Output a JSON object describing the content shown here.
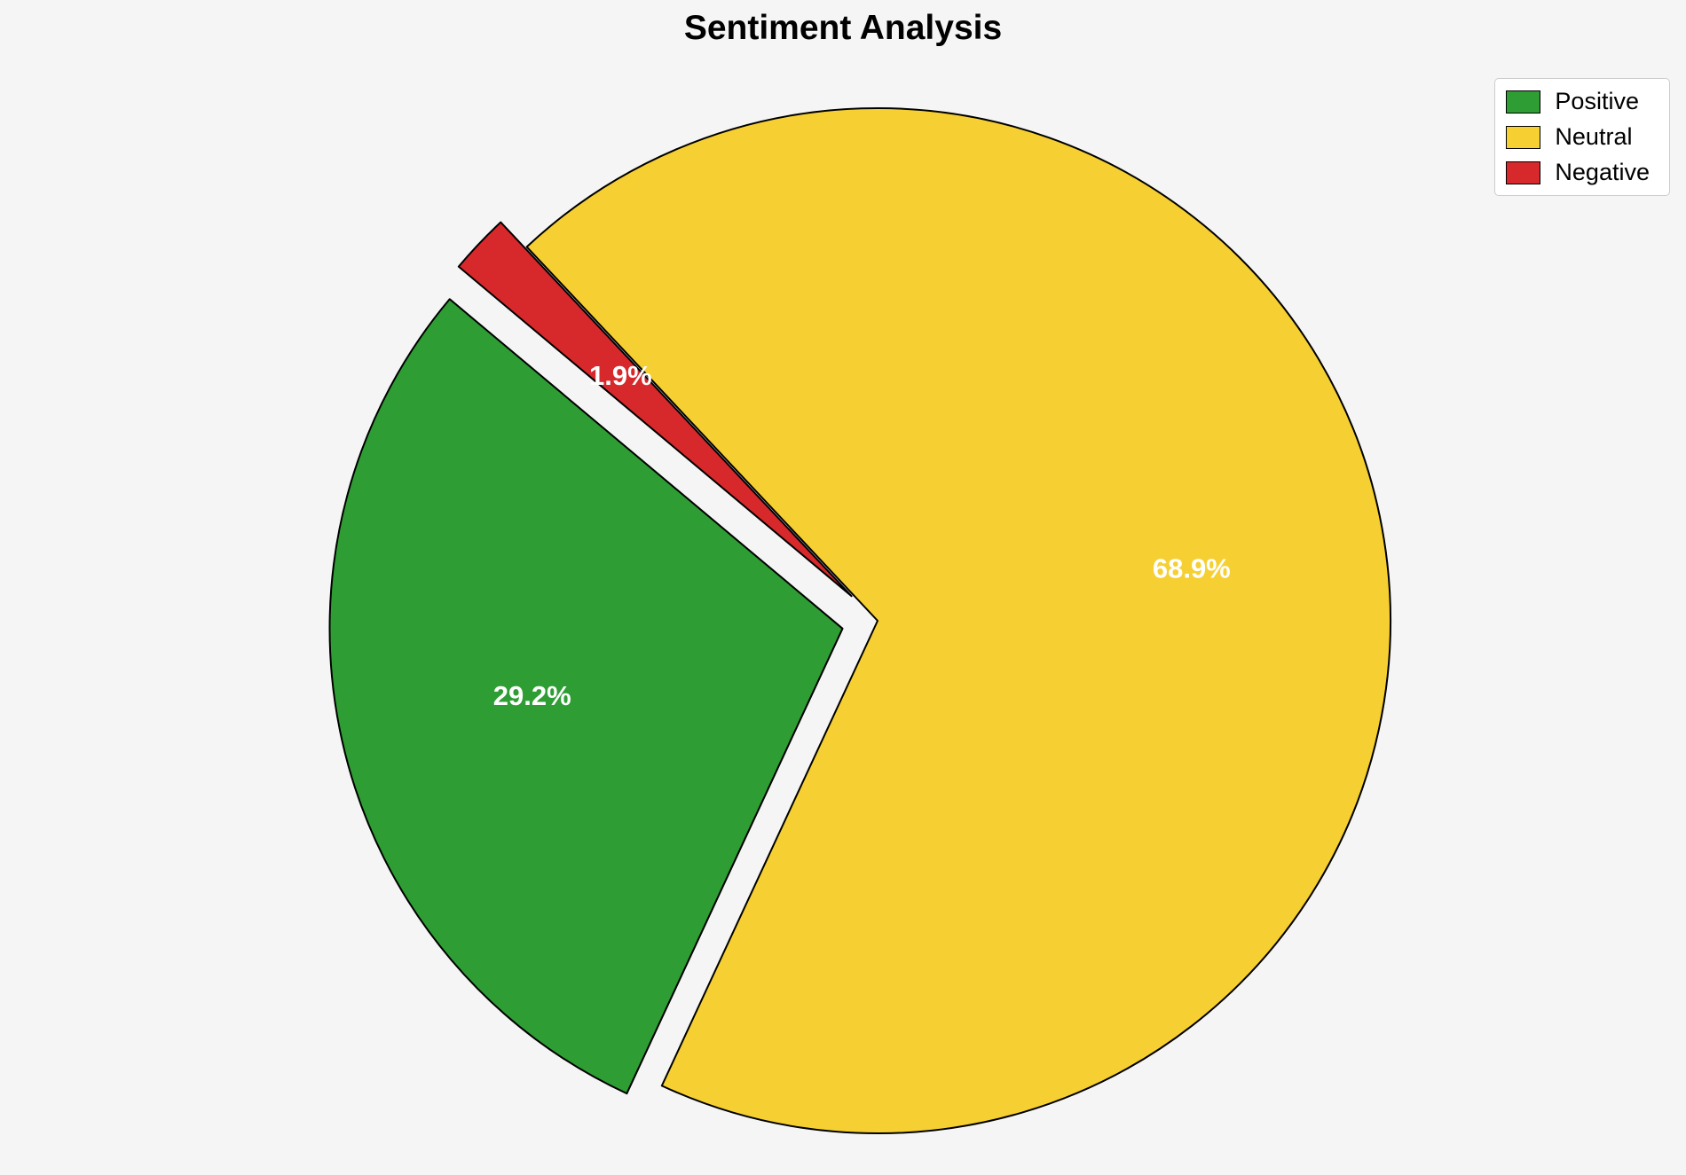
{
  "chart_data": {
    "type": "pie",
    "title": "Sentiment Analysis",
    "background": "#F5F5F6",
    "edge_color": "#000000",
    "pct_color": "#FFFFFF",
    "startangle": 140,
    "counterclock": true,
    "pctdistance": 0.62,
    "slices": [
      {
        "label": "Positive",
        "value": 29.2,
        "pct_label": "29.2%",
        "color": "#2E9D33",
        "explode": 0.07
      },
      {
        "label": "Neutral",
        "value": 68.9,
        "pct_label": "68.9%",
        "color": "#F6CF32",
        "explode": 0.0
      },
      {
        "label": "Negative",
        "value": 1.9,
        "pct_label": "1.9%",
        "color": "#D7292B",
        "explode": 0.07
      }
    ],
    "legend": {
      "position": "upper right",
      "entries": [
        "Positive",
        "Neutral",
        "Negative"
      ]
    }
  }
}
